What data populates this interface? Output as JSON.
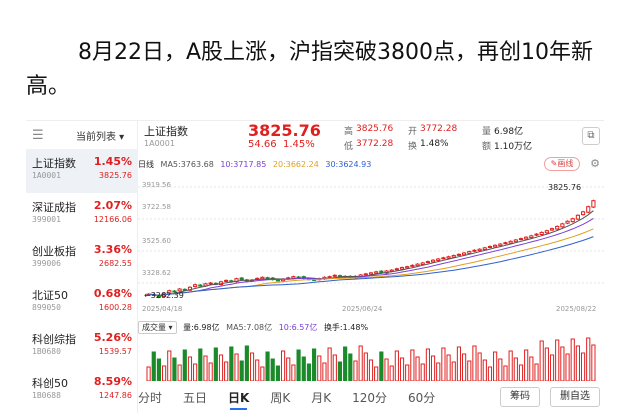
{
  "headline": "8月22日，A股上涨，沪指突破3800点，再创10年新高。",
  "sidebar": {
    "menu_icon": "☰",
    "sort_label": "当前列表 ▾",
    "items": [
      {
        "name": "上证指数",
        "code": "1A0001",
        "pct": "1.45%",
        "value": "3825.76"
      },
      {
        "name": "深证成指",
        "code": "399001",
        "pct": "2.07%",
        "value": "12166.06"
      },
      {
        "name": "创业板指",
        "code": "399006",
        "pct": "3.36%",
        "value": "2682.55"
      },
      {
        "name": "北证50",
        "code": "899050",
        "pct": "0.68%",
        "value": "1600.28"
      },
      {
        "name": "科创综指",
        "code": "1B0680",
        "pct": "5.26%",
        "value": "1539.57"
      },
      {
        "name": "科创50",
        "code": "1B0688",
        "pct": "8.59%",
        "value": "1247.86"
      }
    ]
  },
  "quote": {
    "name": "上证指数",
    "code": "1A0001",
    "price": "3825.76",
    "change": "54.66",
    "change_pct": "1.45%",
    "high_label": "高",
    "high": "3825.76",
    "open_label": "开",
    "open": "3772.28",
    "vol_label": "量",
    "vol": "6.98亿",
    "low_label": "低",
    "low": "3772.28",
    "turnover_label": "换",
    "turnover": "1.48%",
    "amount_label": "额",
    "amount": "1.10万亿"
  },
  "ma": {
    "period": "日线",
    "ma5": "MA5:3763.68",
    "ma10": "10:3717.85",
    "ma20": "20:3662.24",
    "ma30": "30:3624.93",
    "draw_label": "✎画线",
    "colors": {
      "ma5": "#555555",
      "ma10": "#7b3fd6",
      "ma20": "#e0a020",
      "ma30": "#3060d0",
      "up": "#e02020",
      "down": "#1a8a2a"
    }
  },
  "chart_data": {
    "type": "candlestick",
    "y_ticks": [
      "3919.56",
      "3722.58",
      "3525.60",
      "3328.62"
    ],
    "last_price": "3825.76",
    "low_mark": "←3262.39",
    "dates": [
      "2025/04/18",
      "2025/06/24",
      "2025/08/22"
    ],
    "ylim": [
      3240,
      3940
    ],
    "closes": [
      3280,
      3275,
      3262,
      3285,
      3300,
      3295,
      3310,
      3305,
      3320,
      3335,
      3330,
      3340,
      3345,
      3338,
      3352,
      3360,
      3355,
      3370,
      3365,
      3358,
      3362,
      3372,
      3378,
      3370,
      3365,
      3360,
      3368,
      3375,
      3382,
      3378,
      3372,
      3368,
      3362,
      3370,
      3378,
      3382,
      3390,
      3386,
      3380,
      3376,
      3384,
      3392,
      3398,
      3404,
      3410,
      3405,
      3415,
      3420,
      3428,
      3435,
      3440,
      3448,
      3455,
      3462,
      3470,
      3478,
      3485,
      3492,
      3498,
      3505,
      3512,
      3520,
      3528,
      3536,
      3542,
      3550,
      3558,
      3565,
      3572,
      3580,
      3588,
      3596,
      3604,
      3612,
      3620,
      3630,
      3640,
      3650,
      3662,
      3675,
      3690,
      3705,
      3720,
      3740,
      3760,
      3790,
      3825
    ]
  },
  "volume": {
    "toggle_label": "成交量 ▾",
    "vol": "量:6.98亿",
    "ma5": "MA5:7.08亿",
    "ma10": "10:6.57亿",
    "turnover": "换手:1.48%"
  },
  "tabs": [
    "分时",
    "五日",
    "日K",
    "周K",
    "月K",
    "120分",
    "60分"
  ],
  "active_tab": "日K",
  "buttons": {
    "chips": "筹码",
    "remove": "删自选"
  }
}
